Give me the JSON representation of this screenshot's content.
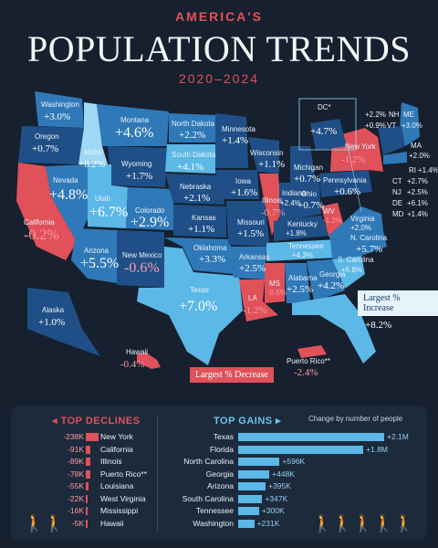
{
  "header": {
    "kicker": "AMERICA'S",
    "title": "POPULATION TRENDS",
    "years": "2020–2024"
  },
  "legend": {
    "increase": "Largest % Increase",
    "decrease": "Largest % Decrease"
  },
  "colors": {
    "dark_blue": "#1f4f86",
    "mid_blue": "#2f79b8",
    "light_blue": "#5cb8e6",
    "pale_blue": "#9fd8f4",
    "decline_red": "#e0515a",
    "background": "#16202e"
  },
  "states": {
    "WA": {
      "name": "Washington",
      "value": "+3.0%"
    },
    "OR": {
      "name": "Oregon",
      "value": "+0.7%"
    },
    "ID": {
      "name": "Idaho",
      "value": "+8.2%"
    },
    "MT": {
      "name": "Montana",
      "value": "+4.6%"
    },
    "ND": {
      "name": "North Dakota",
      "value": "+2.2%"
    },
    "MN": {
      "name": "Minnesota",
      "value": "+1.4%"
    },
    "WY": {
      "name": "Wyoming",
      "value": "+1.7%"
    },
    "SD": {
      "name": "South Dakota",
      "value": "+4.1%"
    },
    "WI": {
      "name": "Wisconsin",
      "value": "+1.1%"
    },
    "MI": {
      "name": "Michigan",
      "value": "+0.7%"
    },
    "NV": {
      "name": "Nevada",
      "value": "+4.8%"
    },
    "UT": {
      "name": "Utah",
      "value": "+6.7%"
    },
    "CO": {
      "name": "Colorado",
      "value": "+2.9%"
    },
    "NE": {
      "name": "Nebraska",
      "value": "+2.1%"
    },
    "IA": {
      "name": "Iowa",
      "value": "+1.6%"
    },
    "IL": {
      "name": "Illinois",
      "value": "-0.7%"
    },
    "IN": {
      "name": "Indiana",
      "value": "+2.4%"
    },
    "OH": {
      "name": "Ohio",
      "value": "+0.7%"
    },
    "PA": {
      "name": "Pennsylvania",
      "value": "+0.6%"
    },
    "NY": {
      "name": "New York",
      "value": "-1.2%"
    },
    "CA": {
      "name": "California",
      "value": "-0.2%"
    },
    "KS": {
      "name": "Kansas",
      "value": "+1.1%"
    },
    "MO": {
      "name": "Missouri",
      "value": "+1.5%"
    },
    "KY": {
      "name": "Kentucky",
      "value": "+1.8%"
    },
    "WV": {
      "name": "WV",
      "value": "-1.2%"
    },
    "VA": {
      "name": "Virginia",
      "value": "+2.0%"
    },
    "AZ": {
      "name": "Arizona",
      "value": "+5.5%"
    },
    "NM": {
      "name": "New Mexico",
      "value": "-0.6%"
    },
    "OK": {
      "name": "Oklahoma",
      "value": "+3.3%"
    },
    "AR": {
      "name": "Arkansas",
      "value": "+2.5%"
    },
    "TN": {
      "name": "Tennessee",
      "value": "+4.3%"
    },
    "NC": {
      "name": "N. Carolina",
      "value": "+5.7%"
    },
    "SC": {
      "name": "S. Carolina",
      "value": "+6.8%"
    },
    "GA": {
      "name": "Georgia",
      "value": "+4.2%"
    },
    "AL": {
      "name": "Alabama",
      "value": "+2.5%"
    },
    "MS": {
      "name": "MS",
      "value": "-0.5%"
    },
    "LA": {
      "name": "LA",
      "value": "-1.2%"
    },
    "TX": {
      "name": "Texas",
      "value": "+7.0%"
    },
    "FL": {
      "name": "Florida",
      "value": "+8.2%"
    },
    "AK": {
      "name": "Alaska",
      "value": "+1.0%"
    },
    "HI": {
      "name": "Hawaii",
      "value": "-0.4%"
    },
    "PR": {
      "name": "Puerto Rico**",
      "value": "-2.4%"
    },
    "DC": {
      "name": "DC*",
      "value": "+4.7%"
    },
    "ME": {
      "name": "ME",
      "value": "+3.0%"
    },
    "NH": {
      "name": "NH",
      "value": "+2.2%"
    },
    "VT": {
      "name": "VT",
      "value": "+0.9%"
    },
    "MA": {
      "name": "MA",
      "value": "+2.0%"
    },
    "RI": {
      "name": "RI",
      "value": "+1.4%"
    },
    "CT": {
      "name": "CT",
      "value": "+2.7%"
    },
    "NJ": {
      "name": "NJ",
      "value": "+2.5%"
    },
    "DE": {
      "name": "DE",
      "value": "+6.1%"
    },
    "MD": {
      "name": "MD",
      "value": "+1.4%"
    }
  },
  "declines": {
    "heading": "TOP DECLINES",
    "rows": [
      {
        "change": "-238K",
        "value": -238,
        "state": "New York"
      },
      {
        "change": "-91K",
        "value": -91,
        "state": "California"
      },
      {
        "change": "-89K",
        "value": -89,
        "state": "Illinois"
      },
      {
        "change": "-78K",
        "value": -78,
        "state": "Puerto Rico**"
      },
      {
        "change": "-55K",
        "value": -55,
        "state": "Louisiana"
      },
      {
        "change": "-22K",
        "value": -22,
        "state": "West Virginia"
      },
      {
        "change": "-16K",
        "value": -16,
        "state": "Mississippi"
      },
      {
        "change": "-5K",
        "value": -5,
        "state": "Hawaii"
      }
    ]
  },
  "gains": {
    "heading": "TOP GAINS",
    "note": "Change by number of people",
    "rows": [
      {
        "state": "Texas",
        "change": "+2.1M",
        "value": 2100
      },
      {
        "state": "Florida",
        "change": "+1.8M",
        "value": 1800
      },
      {
        "state": "North Carolina",
        "change": "+596K",
        "value": 596
      },
      {
        "state": "Georgia",
        "change": "+448K",
        "value": 448
      },
      {
        "state": "Arizona",
        "change": "+395K",
        "value": 395
      },
      {
        "state": "South Carolina",
        "change": "+347K",
        "value": 347
      },
      {
        "state": "Tennessee",
        "change": "+300K",
        "value": 300
      },
      {
        "state": "Washington",
        "change": "+231K",
        "value": 231
      }
    ]
  }
}
